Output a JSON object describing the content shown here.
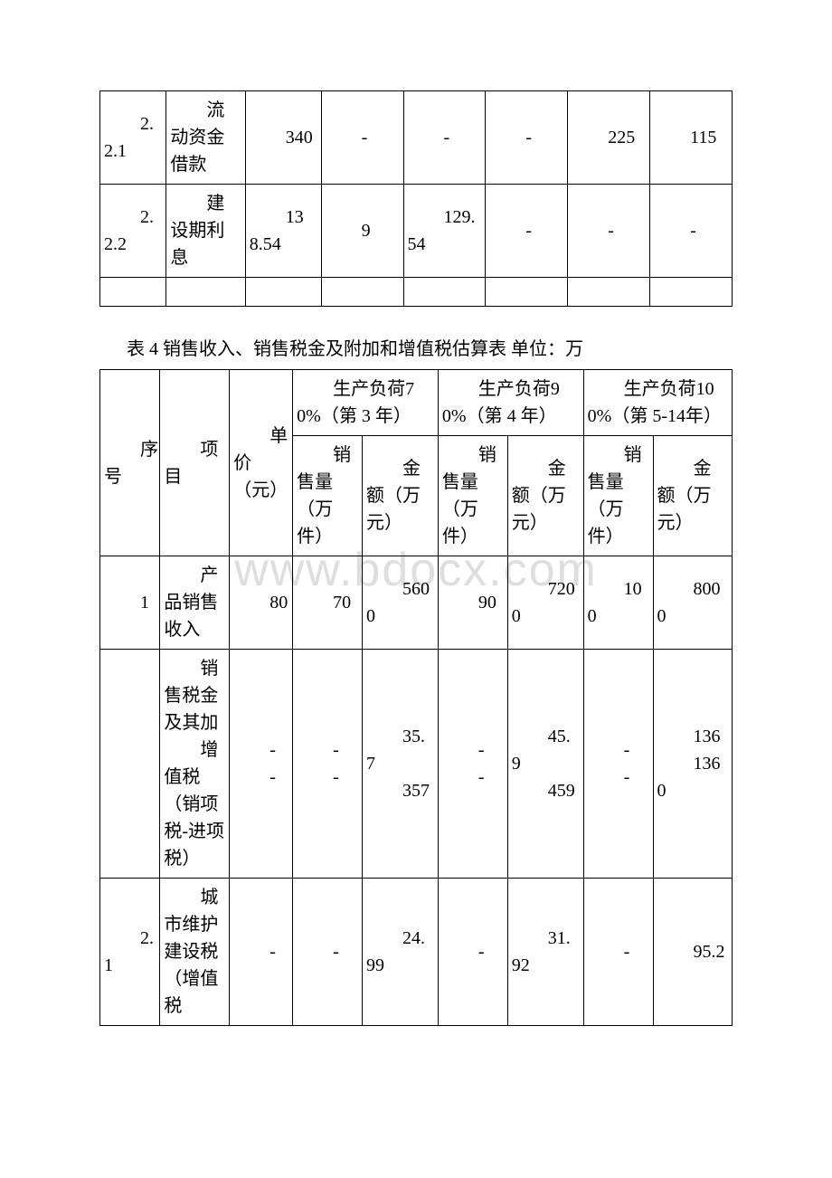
{
  "watermark": "www.bdocx.com",
  "table1": {
    "rows": [
      {
        "c0": "2.2.1",
        "c1": "流动资金借款",
        "c2": "340",
        "c3": "-",
        "c4": "-",
        "c5": "-",
        "c6": "225",
        "c7": "115"
      },
      {
        "c0": "2.2.2",
        "c1": "建设期利息",
        "c2": "138.54",
        "c3": "9",
        "c4": "129.54",
        "c5": "-",
        "c6": "-",
        "c7": "-"
      }
    ]
  },
  "title2": "表 4 销售收入、销售税金及附加和增值税估算表 单位：万",
  "table2": {
    "h_seq": "序号",
    "h_item": "项目",
    "h_price": "单价（元）",
    "h_load70": "生产负荷70%（第 3 年）",
    "h_load90": "生产负荷90%（第 4 年）",
    "h_load100": "生产负荷100%（第 5-14年）",
    "h_qty": "销售量（万件）",
    "h_amt": "金额（万元）",
    "rows": [
      {
        "c0": "1",
        "c1": "产品销售收入",
        "c2": "80",
        "c3": "70",
        "c4": "5600",
        "c5": "90",
        "c6": "7200",
        "c7": "100",
        "c8": "8000"
      },
      {
        "c0": "",
        "c1": "销售税金及其加\n增值税（销项税-进项税）",
        "c2": "-\n-",
        "c3": "-\n-",
        "c4": "35.7\n357",
        "c5": "-\n-",
        "c6": "45.9\n459",
        "c7": "-\n-",
        "c8": "136\n1360"
      },
      {
        "c0": "2.1",
        "c1": "城市维护建设税（增值税",
        "c2": "-",
        "c3": "-",
        "c4": "24.99",
        "c5": "-",
        "c6": "31.92",
        "c7": "-",
        "c8": "95.2"
      }
    ]
  }
}
